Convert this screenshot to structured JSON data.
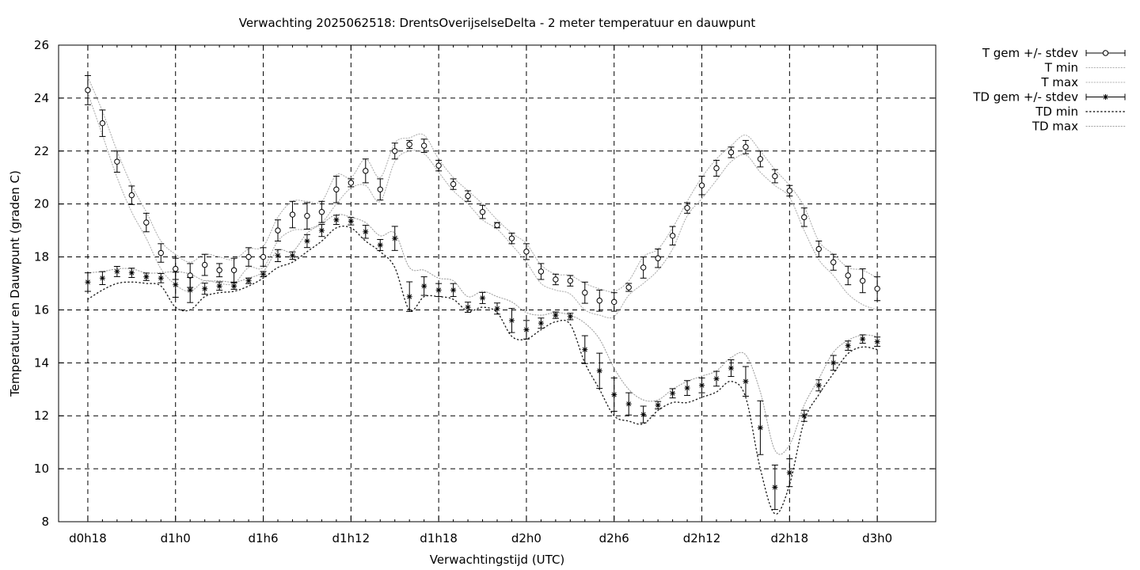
{
  "chart_data": {
    "type": "line",
    "title": "Verwachting 2025062518: DrentsOverijselseDelta - 2 meter temperatuur en dauwpunt",
    "xlabel": "Verwachtingstijd (UTC)",
    "ylabel": "Temperatuur en Dauwpunt (graden C)",
    "x_unit": "hours since d0h0",
    "xlim": [
      16,
      76
    ],
    "ylim": [
      8,
      26
    ],
    "x_tick_values": [
      18,
      24,
      30,
      36,
      42,
      48,
      54,
      60,
      66,
      72
    ],
    "x_tick_labels": [
      "d0h18",
      "d1h0",
      "d1h6",
      "d1h12",
      "d1h18",
      "d2h0",
      "d2h6",
      "d2h12",
      "d2h18",
      "d3h0"
    ],
    "y_ticks": [
      8,
      10,
      12,
      14,
      16,
      18,
      20,
      22,
      24,
      26
    ],
    "grid": true,
    "legend_position": "outside-right",
    "x": [
      18,
      19,
      20,
      21,
      22,
      23,
      24,
      25,
      26,
      27,
      28,
      29,
      30,
      31,
      32,
      33,
      34,
      35,
      36,
      37,
      38,
      39,
      40,
      41,
      42,
      43,
      44,
      45,
      46,
      47,
      48,
      49,
      50,
      51,
      52,
      53,
      54,
      55,
      56,
      57,
      58,
      59,
      60,
      61,
      62,
      63,
      64,
      65,
      66,
      67,
      68,
      69,
      70,
      71,
      72
    ],
    "series": [
      {
        "name": "T gem +/- stdev",
        "marker": "circle",
        "values": [
          24.3,
          23.05,
          21.6,
          20.33,
          19.3,
          18.15,
          17.55,
          17.3,
          17.7,
          17.5,
          17.5,
          18.0,
          18.0,
          19.0,
          19.6,
          19.55,
          19.7,
          20.55,
          20.8,
          21.25,
          20.55,
          22.0,
          22.25,
          22.2,
          21.45,
          20.75,
          20.3,
          19.7,
          19.2,
          18.7,
          18.2,
          17.45,
          17.15,
          17.1,
          16.65,
          16.35,
          16.3,
          16.85,
          17.6,
          17.95,
          18.8,
          19.85,
          20.7,
          21.35,
          21.95,
          22.15,
          21.7,
          21.05,
          20.5,
          19.5,
          18.3,
          17.8,
          17.3,
          17.1,
          16.8
        ],
        "stdev": [
          0.55,
          0.5,
          0.4,
          0.35,
          0.35,
          0.35,
          0.4,
          0.45,
          0.4,
          0.25,
          0.45,
          0.35,
          0.35,
          0.4,
          0.5,
          0.5,
          0.4,
          0.5,
          0.15,
          0.45,
          0.4,
          0.3,
          0.15,
          0.25,
          0.2,
          0.2,
          0.2,
          0.25,
          0.1,
          0.2,
          0.3,
          0.3,
          0.2,
          0.2,
          0.4,
          0.4,
          0.35,
          0.15,
          0.4,
          0.35,
          0.35,
          0.2,
          0.35,
          0.3,
          0.2,
          0.25,
          0.3,
          0.25,
          0.2,
          0.35,
          0.3,
          0.3,
          0.35,
          0.45,
          0.45
        ]
      },
      {
        "name": "T min",
        "values": [
          24.2,
          22.6,
          21.0,
          19.7,
          18.7,
          17.55,
          16.95,
          16.7,
          17.1,
          17.0,
          17.0,
          17.6,
          17.6,
          18.6,
          19.0,
          19.05,
          19.3,
          20.0,
          20.6,
          20.7,
          20.1,
          21.6,
          22.0,
          21.9,
          21.2,
          20.5,
          20.0,
          19.4,
          19.05,
          18.45,
          17.8,
          17.0,
          16.75,
          16.6,
          16.0,
          15.8,
          15.75,
          16.55,
          17.0,
          17.5,
          18.3,
          19.55,
          20.2,
          20.9,
          21.6,
          21.85,
          21.2,
          20.7,
          20.25,
          19.0,
          17.9,
          17.3,
          16.6,
          16.2,
          16.0
        ]
      },
      {
        "name": "T max",
        "values": [
          24.8,
          23.5,
          22.0,
          20.7,
          19.7,
          18.6,
          18.1,
          17.8,
          18.1,
          18.0,
          17.9,
          18.3,
          18.4,
          19.5,
          20.1,
          20.1,
          20.1,
          21.1,
          21.0,
          21.7,
          21.0,
          22.3,
          22.5,
          22.6,
          21.7,
          21.0,
          20.5,
          20.0,
          19.4,
          18.9,
          18.5,
          17.7,
          17.35,
          17.3,
          17.0,
          16.8,
          16.7,
          17.1,
          18.0,
          18.3,
          19.1,
          20.1,
          21.0,
          21.7,
          22.2,
          22.6,
          22.0,
          21.3,
          20.7,
          19.9,
          18.6,
          18.1,
          17.6,
          17.5,
          17.2
        ]
      },
      {
        "name": "TD gem +/- stdev",
        "marker": "star",
        "values": [
          17.05,
          17.2,
          17.45,
          17.4,
          17.25,
          17.2,
          16.95,
          16.75,
          16.8,
          16.9,
          16.9,
          17.1,
          17.35,
          18.05,
          18.05,
          18.6,
          19.0,
          19.4,
          19.35,
          18.95,
          18.45,
          18.7,
          16.5,
          16.9,
          16.75,
          16.75,
          16.1,
          16.45,
          16.05,
          15.6,
          15.25,
          15.5,
          15.8,
          15.75,
          14.5,
          13.7,
          12.8,
          12.45,
          12.05,
          12.4,
          12.85,
          13.05,
          13.15,
          13.4,
          13.8,
          13.3,
          11.55,
          9.3,
          9.85,
          12.0,
          13.15,
          14.0,
          14.65,
          14.9,
          14.8
        ]
      },
      {
        "name": "TD min",
        "values": [
          16.4,
          16.75,
          17.0,
          17.05,
          17.0,
          16.9,
          16.1,
          16.0,
          16.5,
          16.65,
          16.7,
          16.9,
          17.2,
          17.6,
          17.8,
          18.2,
          18.6,
          19.1,
          19.1,
          18.6,
          18.2,
          17.6,
          16.0,
          16.5,
          16.5,
          16.4,
          15.95,
          16.1,
          15.9,
          15.0,
          14.9,
          15.25,
          15.55,
          15.45,
          14.0,
          13.0,
          12.0,
          11.8,
          11.7,
          12.2,
          12.5,
          12.5,
          12.7,
          12.9,
          13.3,
          12.7,
          10.0,
          8.3,
          9.4,
          11.8,
          12.8,
          13.6,
          14.35,
          14.6,
          14.5
        ]
      },
      {
        "name": "TD max",
        "values": [
          17.4,
          17.45,
          17.55,
          17.55,
          17.4,
          17.4,
          17.45,
          17.35,
          17.1,
          17.1,
          17.05,
          17.2,
          17.45,
          18.25,
          18.2,
          18.9,
          19.25,
          19.6,
          19.5,
          19.3,
          18.8,
          18.9,
          17.6,
          17.5,
          17.2,
          17.1,
          16.5,
          16.7,
          16.5,
          16.3,
          15.9,
          15.8,
          15.9,
          15.8,
          15.5,
          14.9,
          13.8,
          13.0,
          12.6,
          12.6,
          13.0,
          13.3,
          13.5,
          13.7,
          14.2,
          14.3,
          12.9,
          10.7,
          10.9,
          12.4,
          13.4,
          14.4,
          14.85,
          15.05,
          15.0
        ]
      }
    ],
    "legend": [
      "T gem +/- stdev",
      "T min",
      "T max",
      "TD gem +/- stdev",
      "TD min",
      "TD max"
    ]
  }
}
